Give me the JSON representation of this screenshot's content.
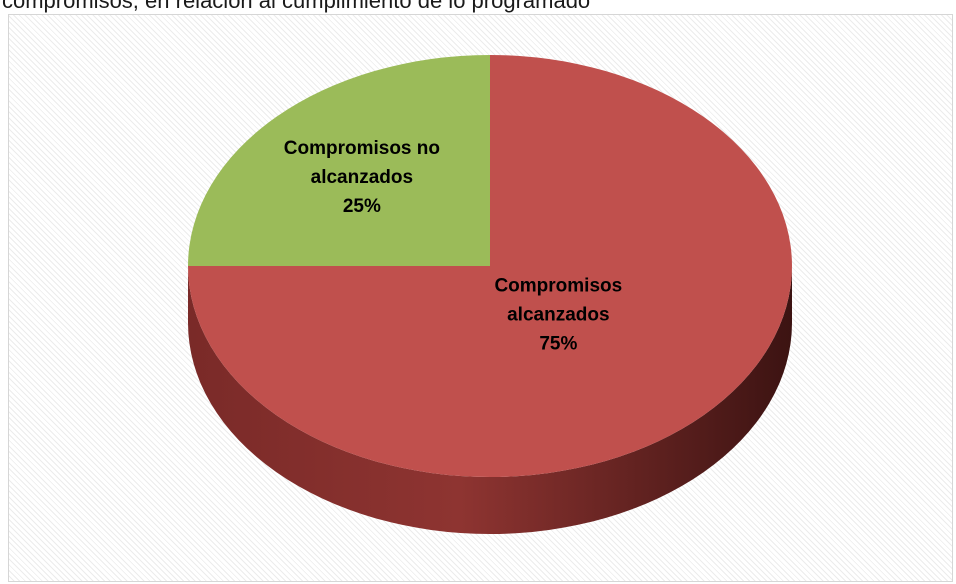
{
  "caption": {
    "text": "compromisos, en relación al cumplimiento de lo programado"
  },
  "chart_data": {
    "type": "pie",
    "style": "3d",
    "title": "",
    "categories": [
      "Compromisos alcanzados",
      "Compromisos no alcanzados"
    ],
    "values": [
      75,
      25
    ],
    "unit": "%",
    "colors": [
      "#c0504d",
      "#9bbb59"
    ],
    "labels": [
      {
        "lines": [
          "Compromisos",
          "alcanzados",
          "75%"
        ]
      },
      {
        "lines": [
          "Compromisos no",
          "alcanzados",
          "25%"
        ]
      }
    ],
    "legend": "none",
    "grid": false
  }
}
